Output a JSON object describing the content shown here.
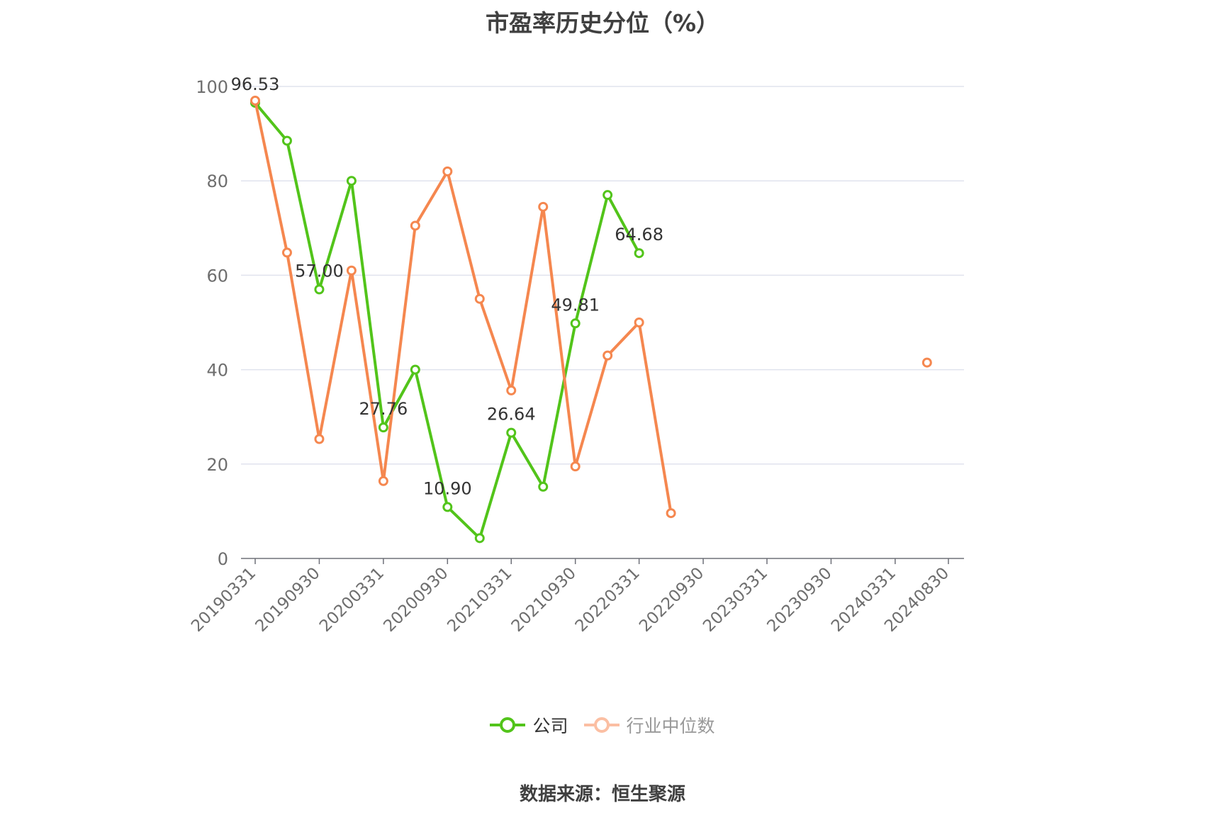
{
  "chart_data": {
    "type": "line",
    "title": "市盈率历史分位（%）",
    "xlabel": "",
    "ylabel": "",
    "ylim": [
      0,
      100
    ],
    "yticks": [
      0,
      20,
      40,
      60,
      80,
      100
    ],
    "x_tick_labels": [
      "20190331",
      "20190930",
      "20200331",
      "20200930",
      "20210331",
      "20210930",
      "20220331",
      "20220930",
      "20230331",
      "20230930",
      "20240331",
      "20240830"
    ],
    "x": [
      "20190331",
      "20190630",
      "20190930",
      "20191231",
      "20200331",
      "20200630",
      "20200930",
      "20201231",
      "20210331",
      "20210630",
      "20210930",
      "20211231",
      "20220331",
      "20220630",
      "20220930",
      "20221231",
      "20230331",
      "20230630",
      "20230930",
      "20231231",
      "20240331",
      "20240630",
      "20240830"
    ],
    "grid": true,
    "legend_position": "bottom-center",
    "series": [
      {
        "name": "公司",
        "color": "#52c41a",
        "values": [
          96.53,
          88.5,
          57.0,
          80.0,
          27.76,
          40.0,
          10.9,
          4.3,
          26.64,
          15.2,
          49.81,
          77.0,
          64.68,
          null,
          null,
          null,
          null,
          null,
          null,
          null,
          null,
          null,
          null
        ],
        "data_labels": {
          "0": "96.53",
          "2": "57.00",
          "4": "27.76",
          "6": "10.90",
          "8": "26.64",
          "10": "49.81",
          "12": "64.68"
        }
      },
      {
        "name": "行业中位数",
        "color": "#f5874f",
        "values": [
          97.0,
          64.8,
          25.3,
          61.0,
          16.4,
          70.5,
          82.0,
          55.0,
          35.6,
          74.5,
          19.5,
          43.0,
          50.0,
          9.6,
          null,
          null,
          null,
          null,
          null,
          null,
          null,
          41.5,
          null
        ],
        "data_labels": {}
      }
    ]
  },
  "legend": {
    "items": [
      {
        "label": "公司",
        "color": "#52c41a"
      },
      {
        "label": "行业中位数",
        "color": "#f5874f",
        "faded_color": "#fbbfa3"
      }
    ]
  },
  "source_text": "数据来源：恒生聚源"
}
